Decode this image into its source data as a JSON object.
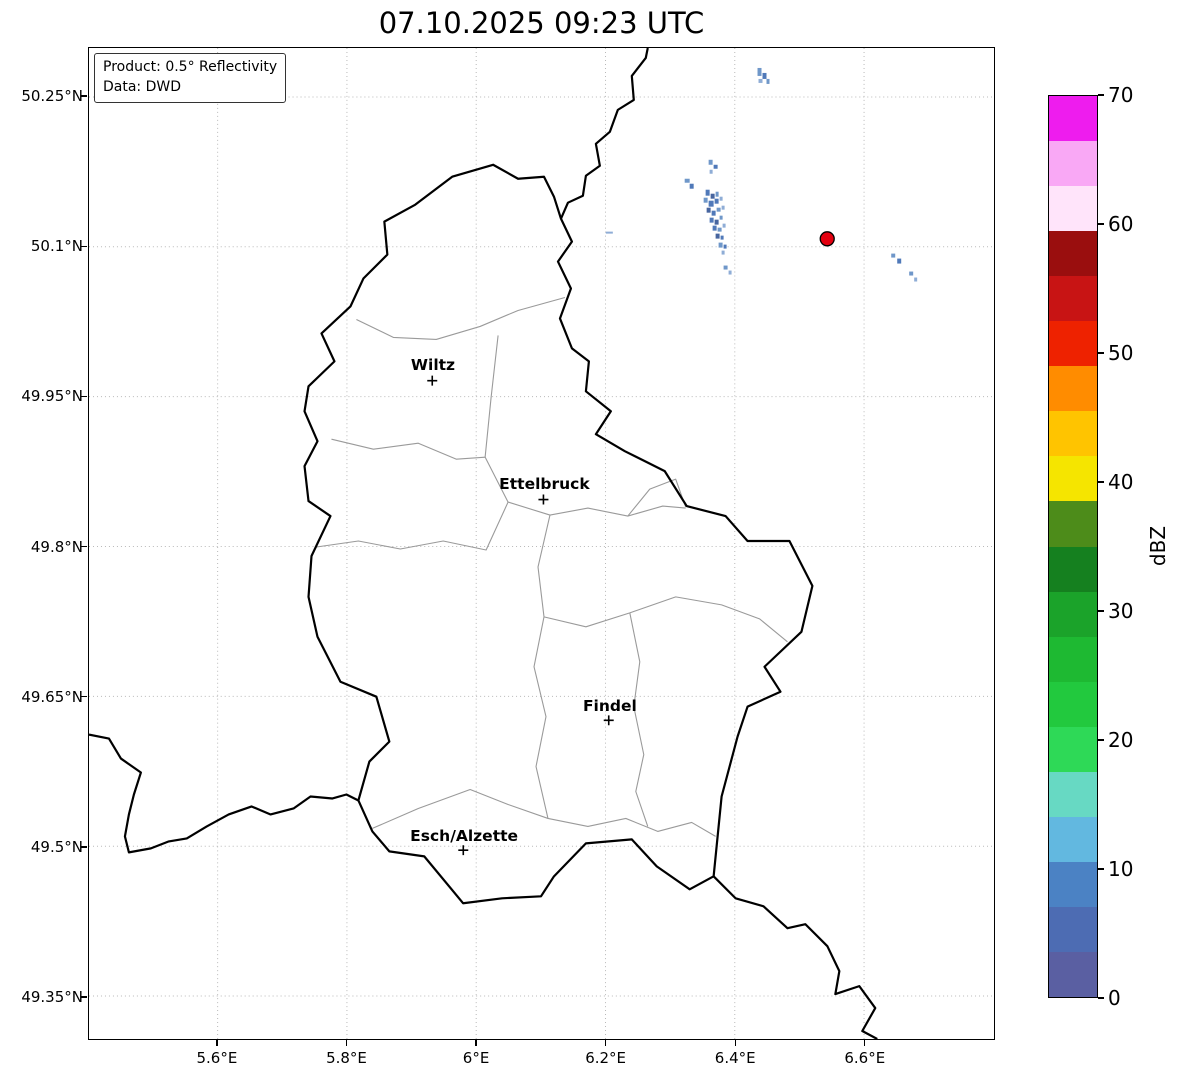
{
  "title": "07.10.2025 09:23 UTC",
  "legend": {
    "line1": "Product: 0.5° Reflectivity",
    "line2": "Data: DWD"
  },
  "axes": {
    "lon": {
      "min": 5.401,
      "max": 6.801,
      "ticks": [
        {
          "v": 5.6,
          "label": "5.6°E"
        },
        {
          "v": 5.8,
          "label": "5.8°E"
        },
        {
          "v": 6.0,
          "label": "6°E"
        },
        {
          "v": 6.2,
          "label": "6.2°E"
        },
        {
          "v": 6.4,
          "label": "6.4°E"
        },
        {
          "v": 6.6,
          "label": "6.6°E"
        }
      ]
    },
    "lat": {
      "min": 49.307,
      "max": 50.299,
      "ticks": [
        {
          "v": 50.25,
          "label": "50.25°N"
        },
        {
          "v": 50.1,
          "label": "50.1°N"
        },
        {
          "v": 49.95,
          "label": "49.95°N"
        },
        {
          "v": 49.8,
          "label": "49.8°N"
        },
        {
          "v": 49.65,
          "label": "49.65°N"
        },
        {
          "v": 49.5,
          "label": "49.5°N"
        },
        {
          "v": 49.35,
          "label": "49.35°N"
        }
      ]
    }
  },
  "cities": [
    {
      "name": "Wiltz",
      "lon": 5.932,
      "lat": 49.966
    },
    {
      "name": "Ettelbruck",
      "lon": 6.104,
      "lat": 49.847
    },
    {
      "name": "Findel",
      "lon": 6.205,
      "lat": 49.626
    },
    {
      "name": "Esch/Alzette",
      "lon": 5.98,
      "lat": 49.496
    }
  ],
  "radar_site": {
    "lon": 6.543,
    "lat": 50.108,
    "color": "#e30010"
  },
  "echoes": {
    "units": "plot-pixels",
    "cells": [
      [
        670,
        20,
        4,
        8,
        "#6f97c9"
      ],
      [
        675,
        25,
        4,
        6,
        "#5079b9"
      ],
      [
        679,
        31,
        3,
        5,
        "#6f97c9"
      ],
      [
        671,
        31,
        4,
        4,
        "#8fadd6"
      ],
      [
        597,
        131,
        5,
        4,
        "#6f97c9"
      ],
      [
        602,
        136,
        4,
        5,
        "#5079b9"
      ],
      [
        621,
        112,
        4,
        5,
        "#6f97c9"
      ],
      [
        626,
        117,
        4,
        4,
        "#5079b9"
      ],
      [
        622,
        122,
        3,
        4,
        "#8fadd6"
      ],
      [
        518,
        184,
        7,
        2,
        "#8fadd6"
      ],
      [
        618,
        142,
        4,
        6,
        "#5079b9"
      ],
      [
        623,
        146,
        4,
        5,
        "#47659f"
      ],
      [
        628,
        144,
        3,
        5,
        "#6f97c9"
      ],
      [
        616,
        150,
        4,
        5,
        "#6f97c9"
      ],
      [
        621,
        153,
        5,
        6,
        "#5079b9"
      ],
      [
        627,
        151,
        4,
        5,
        "#5079b9"
      ],
      [
        632,
        149,
        3,
        4,
        "#8fadd6"
      ],
      [
        619,
        160,
        4,
        5,
        "#47659f"
      ],
      [
        624,
        163,
        4,
        5,
        "#5079b9"
      ],
      [
        629,
        160,
        4,
        4,
        "#6f97c9"
      ],
      [
        634,
        158,
        3,
        4,
        "#8fadd6"
      ],
      [
        622,
        170,
        4,
        5,
        "#5079b9"
      ],
      [
        627,
        172,
        4,
        5,
        "#47659f"
      ],
      [
        632,
        168,
        3,
        4,
        "#6f97c9"
      ],
      [
        625,
        178,
        4,
        5,
        "#5079b9"
      ],
      [
        630,
        180,
        4,
        4,
        "#6f97c9"
      ],
      [
        635,
        176,
        3,
        4,
        "#8fadd6"
      ],
      [
        628,
        186,
        4,
        5,
        "#47659f"
      ],
      [
        633,
        188,
        3,
        4,
        "#5079b9"
      ],
      [
        631,
        195,
        4,
        5,
        "#6f97c9"
      ],
      [
        636,
        197,
        3,
        4,
        "#5079b9"
      ],
      [
        634,
        203,
        3,
        4,
        "#8fadd6"
      ],
      [
        636,
        218,
        4,
        4,
        "#6f97c9"
      ],
      [
        641,
        223,
        3,
        4,
        "#8fadd6"
      ],
      [
        804,
        206,
        4,
        4,
        "#6f97c9"
      ],
      [
        810,
        211,
        4,
        5,
        "#5079b9"
      ],
      [
        822,
        224,
        4,
        4,
        "#6f97c9"
      ],
      [
        827,
        230,
        3,
        4,
        "#8fadd6"
      ]
    ]
  },
  "colorbar": {
    "label": "dBZ",
    "min": 0,
    "max": 70,
    "ticks": [
      0,
      10,
      20,
      30,
      40,
      50,
      60,
      70
    ],
    "colors": [
      "#5a5fa2",
      "#4d6cb3",
      "#4b82c4",
      "#62b8e0",
      "#67d9c3",
      "#2ed957",
      "#22c93e",
      "#1eb932",
      "#1ba32a",
      "#15801f",
      "#4d8c1a",
      "#f5e500",
      "#ffc400",
      "#ff8c00",
      "#ee2200",
      "#c81414",
      "#9a0e0e",
      "#ffe4fa",
      "#f9a8f5",
      "#ee1cee"
    ]
  }
}
